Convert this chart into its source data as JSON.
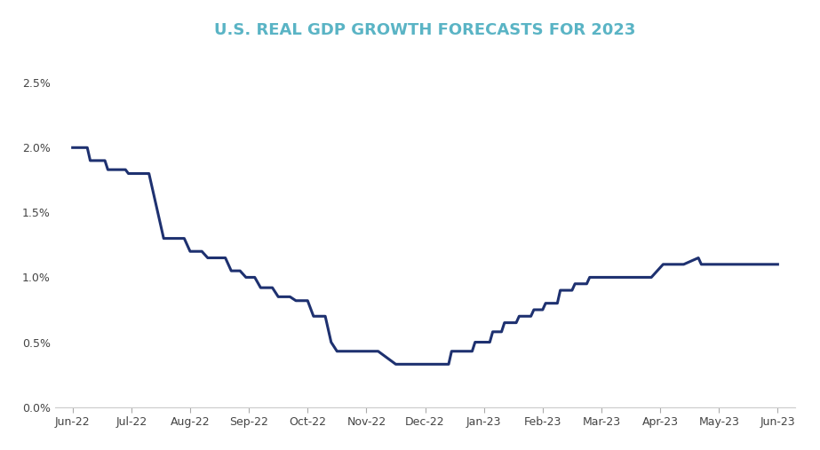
{
  "title": "U.S. REAL GDP GROWTH FORECASTS FOR 2023",
  "title_color": "#5ab4c5",
  "line_color": "#1e3170",
  "background_color": "#ffffff",
  "line_width": 2.2,
  "ylim": [
    0.0,
    0.027
  ],
  "yticks": [
    0.0,
    0.005,
    0.01,
    0.015,
    0.02,
    0.025
  ],
  "ytick_labels": [
    "0.0%",
    "0.5%",
    "1.0%",
    "1.5%",
    "2.0%",
    "2.5%"
  ],
  "x_labels": [
    "Jun-22",
    "Jul-22",
    "Aug-22",
    "Sep-22",
    "Oct-22",
    "Nov-22",
    "Dec-22",
    "Jan-23",
    "Feb-23",
    "Mar-23",
    "Apr-23",
    "May-23",
    "Jun-23"
  ],
  "step_data": [
    [
      0.0,
      0.02
    ],
    [
      0.25,
      0.02
    ],
    [
      0.3,
      0.019
    ],
    [
      0.55,
      0.019
    ],
    [
      0.6,
      0.0183
    ],
    [
      0.9,
      0.0183
    ],
    [
      0.95,
      0.018
    ],
    [
      1.3,
      0.018
    ],
    [
      1.55,
      0.013
    ],
    [
      1.9,
      0.013
    ],
    [
      2.0,
      0.012
    ],
    [
      2.2,
      0.012
    ],
    [
      2.3,
      0.0115
    ],
    [
      2.6,
      0.0115
    ],
    [
      2.7,
      0.0105
    ],
    [
      2.85,
      0.0105
    ],
    [
      2.95,
      0.01
    ],
    [
      3.1,
      0.01
    ],
    [
      3.2,
      0.0092
    ],
    [
      3.4,
      0.0092
    ],
    [
      3.5,
      0.0085
    ],
    [
      3.7,
      0.0085
    ],
    [
      3.8,
      0.0082
    ],
    [
      4.0,
      0.0082
    ],
    [
      4.1,
      0.007
    ],
    [
      4.3,
      0.007
    ],
    [
      4.4,
      0.005
    ],
    [
      4.5,
      0.0043
    ],
    [
      4.9,
      0.0043
    ],
    [
      5.2,
      0.0043
    ],
    [
      5.5,
      0.0033
    ],
    [
      6.0,
      0.0033
    ],
    [
      6.4,
      0.0033
    ],
    [
      6.45,
      0.0043
    ],
    [
      6.8,
      0.0043
    ],
    [
      6.85,
      0.005
    ],
    [
      7.1,
      0.005
    ],
    [
      7.15,
      0.0058
    ],
    [
      7.3,
      0.0058
    ],
    [
      7.35,
      0.0065
    ],
    [
      7.55,
      0.0065
    ],
    [
      7.6,
      0.007
    ],
    [
      7.8,
      0.007
    ],
    [
      7.85,
      0.0075
    ],
    [
      8.0,
      0.0075
    ],
    [
      8.05,
      0.008
    ],
    [
      8.25,
      0.008
    ],
    [
      8.3,
      0.009
    ],
    [
      8.5,
      0.009
    ],
    [
      8.55,
      0.0095
    ],
    [
      8.75,
      0.0095
    ],
    [
      8.8,
      0.01
    ],
    [
      9.1,
      0.01
    ],
    [
      9.15,
      0.01
    ],
    [
      9.4,
      0.01
    ],
    [
      9.45,
      0.01
    ],
    [
      9.8,
      0.01
    ],
    [
      9.85,
      0.01
    ],
    [
      10.05,
      0.011
    ],
    [
      10.35,
      0.011
    ],
    [
      10.4,
      0.011
    ],
    [
      10.65,
      0.0115
    ],
    [
      10.7,
      0.011
    ],
    [
      12.0,
      0.011
    ]
  ]
}
